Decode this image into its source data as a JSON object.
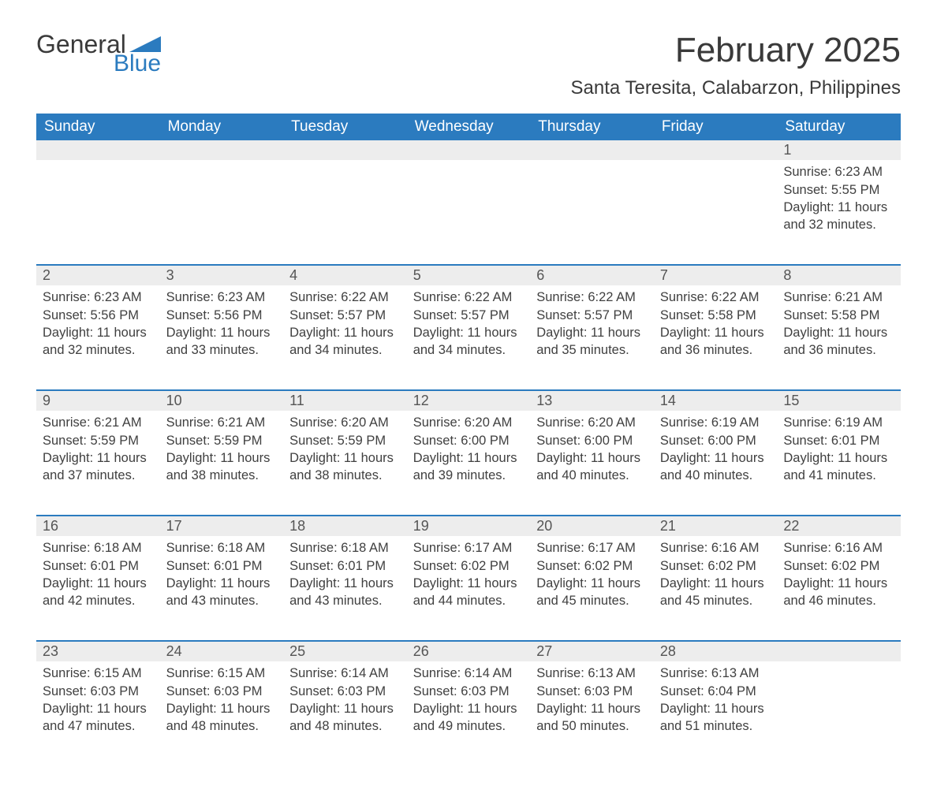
{
  "logo": {
    "line1": "General",
    "line2": "Blue"
  },
  "title": "February 2025",
  "location": "Santa Teresita, Calabarzon, Philippines",
  "colors": {
    "brand_blue": "#2b7bbf",
    "header_row_bg": "#2b7bbf",
    "header_row_text": "#ffffff",
    "daynum_bg": "#ededed",
    "text": "#3a3a3a",
    "body_bg": "#ffffff"
  },
  "day_headers": [
    "Sunday",
    "Monday",
    "Tuesday",
    "Wednesday",
    "Thursday",
    "Friday",
    "Saturday"
  ],
  "weeks": [
    [
      null,
      null,
      null,
      null,
      null,
      null,
      {
        "n": "1",
        "sunrise": "6:23 AM",
        "sunset": "5:55 PM",
        "daylight": "11 hours and 32 minutes."
      }
    ],
    [
      {
        "n": "2",
        "sunrise": "6:23 AM",
        "sunset": "5:56 PM",
        "daylight": "11 hours and 32 minutes."
      },
      {
        "n": "3",
        "sunrise": "6:23 AM",
        "sunset": "5:56 PM",
        "daylight": "11 hours and 33 minutes."
      },
      {
        "n": "4",
        "sunrise": "6:22 AM",
        "sunset": "5:57 PM",
        "daylight": "11 hours and 34 minutes."
      },
      {
        "n": "5",
        "sunrise": "6:22 AM",
        "sunset": "5:57 PM",
        "daylight": "11 hours and 34 minutes."
      },
      {
        "n": "6",
        "sunrise": "6:22 AM",
        "sunset": "5:57 PM",
        "daylight": "11 hours and 35 minutes."
      },
      {
        "n": "7",
        "sunrise": "6:22 AM",
        "sunset": "5:58 PM",
        "daylight": "11 hours and 36 minutes."
      },
      {
        "n": "8",
        "sunrise": "6:21 AM",
        "sunset": "5:58 PM",
        "daylight": "11 hours and 36 minutes."
      }
    ],
    [
      {
        "n": "9",
        "sunrise": "6:21 AM",
        "sunset": "5:59 PM",
        "daylight": "11 hours and 37 minutes."
      },
      {
        "n": "10",
        "sunrise": "6:21 AM",
        "sunset": "5:59 PM",
        "daylight": "11 hours and 38 minutes."
      },
      {
        "n": "11",
        "sunrise": "6:20 AM",
        "sunset": "5:59 PM",
        "daylight": "11 hours and 38 minutes."
      },
      {
        "n": "12",
        "sunrise": "6:20 AM",
        "sunset": "6:00 PM",
        "daylight": "11 hours and 39 minutes."
      },
      {
        "n": "13",
        "sunrise": "6:20 AM",
        "sunset": "6:00 PM",
        "daylight": "11 hours and 40 minutes."
      },
      {
        "n": "14",
        "sunrise": "6:19 AM",
        "sunset": "6:00 PM",
        "daylight": "11 hours and 40 minutes."
      },
      {
        "n": "15",
        "sunrise": "6:19 AM",
        "sunset": "6:01 PM",
        "daylight": "11 hours and 41 minutes."
      }
    ],
    [
      {
        "n": "16",
        "sunrise": "6:18 AM",
        "sunset": "6:01 PM",
        "daylight": "11 hours and 42 minutes."
      },
      {
        "n": "17",
        "sunrise": "6:18 AM",
        "sunset": "6:01 PM",
        "daylight": "11 hours and 43 minutes."
      },
      {
        "n": "18",
        "sunrise": "6:18 AM",
        "sunset": "6:01 PM",
        "daylight": "11 hours and 43 minutes."
      },
      {
        "n": "19",
        "sunrise": "6:17 AM",
        "sunset": "6:02 PM",
        "daylight": "11 hours and 44 minutes."
      },
      {
        "n": "20",
        "sunrise": "6:17 AM",
        "sunset": "6:02 PM",
        "daylight": "11 hours and 45 minutes."
      },
      {
        "n": "21",
        "sunrise": "6:16 AM",
        "sunset": "6:02 PM",
        "daylight": "11 hours and 45 minutes."
      },
      {
        "n": "22",
        "sunrise": "6:16 AM",
        "sunset": "6:02 PM",
        "daylight": "11 hours and 46 minutes."
      }
    ],
    [
      {
        "n": "23",
        "sunrise": "6:15 AM",
        "sunset": "6:03 PM",
        "daylight": "11 hours and 47 minutes."
      },
      {
        "n": "24",
        "sunrise": "6:15 AM",
        "sunset": "6:03 PM",
        "daylight": "11 hours and 48 minutes."
      },
      {
        "n": "25",
        "sunrise": "6:14 AM",
        "sunset": "6:03 PM",
        "daylight": "11 hours and 48 minutes."
      },
      {
        "n": "26",
        "sunrise": "6:14 AM",
        "sunset": "6:03 PM",
        "daylight": "11 hours and 49 minutes."
      },
      {
        "n": "27",
        "sunrise": "6:13 AM",
        "sunset": "6:03 PM",
        "daylight": "11 hours and 50 minutes."
      },
      {
        "n": "28",
        "sunrise": "6:13 AM",
        "sunset": "6:04 PM",
        "daylight": "11 hours and 51 minutes."
      },
      null
    ]
  ],
  "labels": {
    "sunrise": "Sunrise:",
    "sunset": "Sunset:",
    "daylight": "Daylight:"
  }
}
